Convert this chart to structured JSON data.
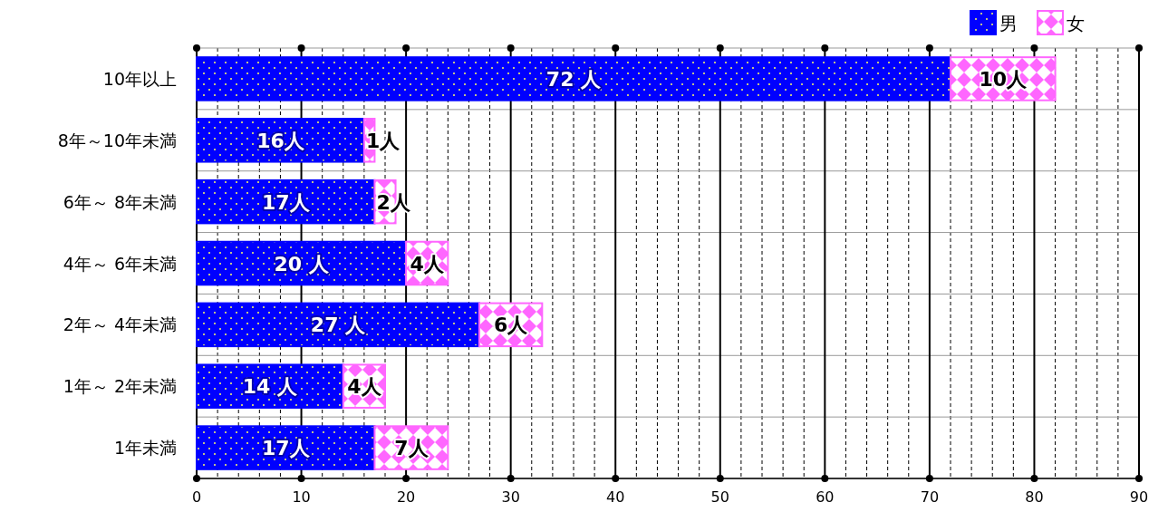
{
  "chart_data": {
    "type": "bar",
    "orientation": "horizontal",
    "stacked": true,
    "categories": [
      "10年以上",
      "8年～10年未満",
      "6年～ 8年未満",
      "4年～ 6年未満",
      "2年～ 4年未満",
      "1年～ 2年未満",
      "1年未満"
    ],
    "series": [
      {
        "name": "男",
        "color": "#0000ff",
        "values": [
          72,
          16,
          17,
          20,
          27,
          14,
          17
        ],
        "value_labels": [
          "72 人",
          "16人",
          "17人",
          "20 人",
          "27 人",
          "14 人",
          "17人"
        ]
      },
      {
        "name": "女",
        "color": "#ff66ff",
        "values": [
          10,
          1,
          2,
          4,
          6,
          4,
          7
        ],
        "value_labels": [
          "10人",
          "1人",
          "2人",
          "4人",
          "6人",
          "4人",
          "7人"
        ]
      }
    ],
    "xlim": [
      0,
      90
    ],
    "xticks": [
      0,
      10,
      20,
      30,
      40,
      50,
      60,
      70,
      80,
      90
    ],
    "grid": true,
    "legend": "top right"
  }
}
